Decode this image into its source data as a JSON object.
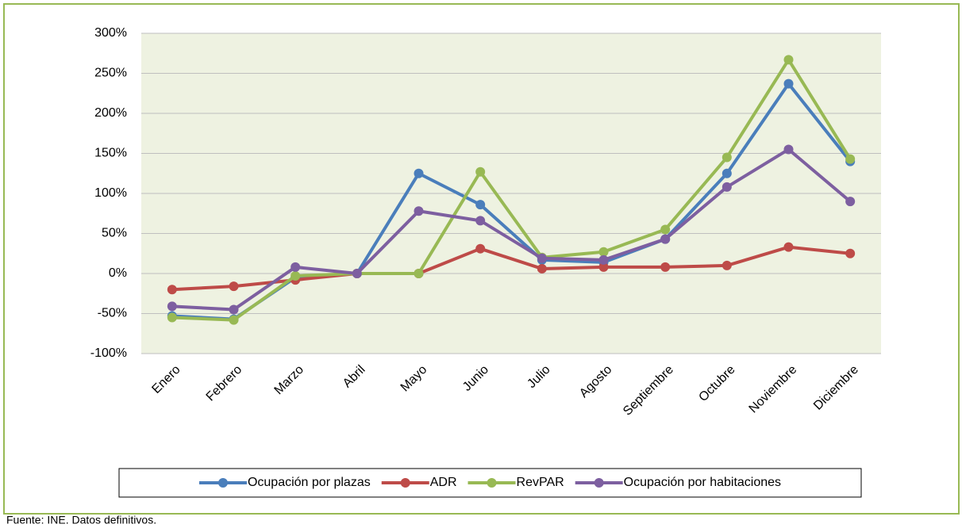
{
  "chart_data": {
    "type": "line",
    "categories": [
      "Enero",
      "Febrero",
      "Marzo",
      "Abril",
      "Mayo",
      "Junio",
      "Julio",
      "Agosto",
      "Septiembre",
      "Octubre",
      "Noviembre",
      "Diciembre"
    ],
    "series": [
      {
        "name": "Ocupación por plazas",
        "color": "#4a7ebb",
        "values": [
          -53,
          -57,
          -5,
          0,
          125,
          86,
          17,
          14,
          43,
          125,
          237,
          140
        ]
      },
      {
        "name": "ADR",
        "color": "#be4b48",
        "values": [
          -20,
          -16,
          -8,
          0,
          0,
          31,
          6,
          8,
          8,
          10,
          33,
          25
        ]
      },
      {
        "name": "RevPAR",
        "color": "#98b954",
        "values": [
          -55,
          -58,
          -3,
          0,
          0,
          127,
          20,
          27,
          55,
          145,
          267,
          143
        ]
      },
      {
        "name": "Ocupación por habitaciones",
        "color": "#7d5fa0",
        "values": [
          -41,
          -45,
          8,
          0,
          78,
          66,
          19,
          17,
          43,
          108,
          155,
          90
        ]
      }
    ],
    "ylim": [
      -100,
      300
    ],
    "yticks": [
      {
        "value": -100,
        "label": "-100%"
      },
      {
        "value": -50,
        "label": "-50%"
      },
      {
        "value": 0,
        "label": "0%"
      },
      {
        "value": 50,
        "label": "50%"
      },
      {
        "value": 100,
        "label": "100%"
      },
      {
        "value": 150,
        "label": "150%"
      },
      {
        "value": 200,
        "label": "200%"
      },
      {
        "value": 250,
        "label": "250%"
      },
      {
        "value": 300,
        "label": "300%"
      }
    ],
    "grid": true,
    "legend": "bottom",
    "note": "Fuente: INE. Datos definitivos."
  }
}
